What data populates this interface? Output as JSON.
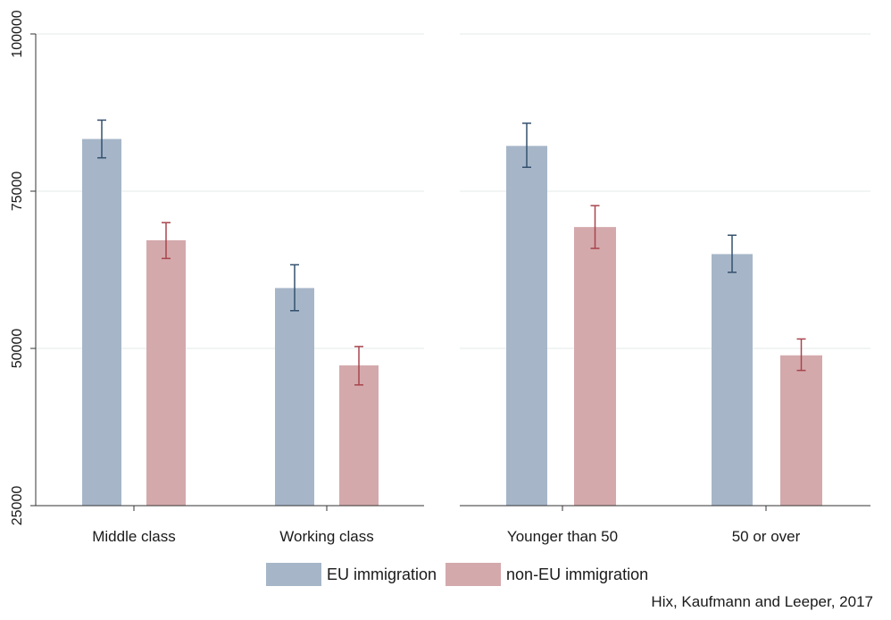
{
  "chart_data": {
    "type": "bar",
    "ylim": [
      25000,
      100000
    ],
    "yticks": [
      25000,
      50000,
      75000,
      100000
    ],
    "grid": true,
    "legend_position": "bottom",
    "panels": [
      {
        "categories": [
          "Middle class",
          "Working class"
        ],
        "series": [
          {
            "name": "EU immigration",
            "values": [
              83300,
              59600
            ],
            "ci_low": [
              80300,
              56000
            ],
            "ci_high": [
              86300,
              63300
            ]
          },
          {
            "name": "non-EU immigration",
            "values": [
              67200,
              47300
            ],
            "ci_low": [
              64300,
              44200
            ],
            "ci_high": [
              70000,
              50300
            ]
          }
        ]
      },
      {
        "categories": [
          "Younger than 50",
          "50 or over"
        ],
        "series": [
          {
            "name": "EU immigration",
            "values": [
              82200,
              65000
            ],
            "ci_low": [
              78800,
              62100
            ],
            "ci_high": [
              85800,
              68000
            ]
          },
          {
            "name": "non-EU immigration",
            "values": [
              69300,
              48900
            ],
            "ci_low": [
              65900,
              46500
            ],
            "ci_high": [
              72700,
              51500
            ]
          }
        ]
      }
    ],
    "colors": {
      "eu": "#a6b6c8",
      "eu_error": "#34506e",
      "noneu": "#d4a9ac",
      "noneu_error": "#a8454d",
      "grid": "#e3ebea"
    }
  },
  "legend": {
    "items": [
      {
        "label": "EU immigration",
        "color": "#a6b6c8"
      },
      {
        "label": "non-EU immigration",
        "color": "#d4a9ac"
      }
    ]
  },
  "source": "Hix, Kaufmann and Leeper, 2017"
}
